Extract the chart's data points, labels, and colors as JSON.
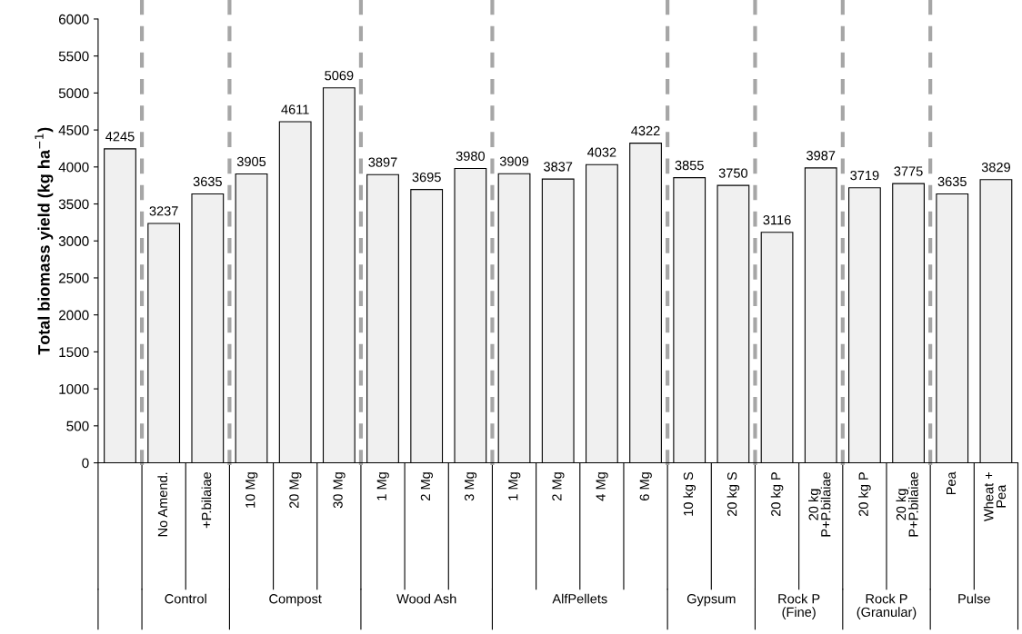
{
  "chart_data": {
    "type": "bar",
    "ylabel": "Total biomass yield (kg ha$^{−1}$)",
    "categories": [
      null,
      "No Amend.",
      "+P.bilaiae",
      "10 Mg",
      "20 Mg",
      "30 Mg",
      "1 Mg",
      "2 Mg",
      "3 Mg",
      "1 Mg",
      "2 Mg",
      "4 Mg",
      "6 Mg",
      "10 kg S",
      "20 kg S",
      "20 kg P",
      "20 kg\nP+P.bilaiae",
      "20 kg P",
      "20 kg\nP+P.bilaiae",
      "Pea",
      "Wheat +\nPea"
    ],
    "values": [
      4245,
      3237,
      3635,
      3905,
      4611,
      5069,
      3897,
      3695,
      3980,
      3909,
      3837,
      4032,
      4322,
      3855,
      3750,
      3116,
      3987,
      3719,
      3775,
      3635,
      3829
    ],
    "color": "#f0f0f0",
    "data_labels": true,
    "ylim": [
      0,
      6000
    ],
    "yticks": [
      0,
      500,
      1000,
      1500,
      2000,
      2500,
      3000,
      3500,
      4000,
      4500,
      5000,
      5500,
      6000
    ],
    "grid": false,
    "annotations": [
      "Control",
      "Compost",
      "Wood Ash",
      "AlfPellets",
      "Gypsum",
      "Rock P\n(Fine)",
      "Rock P\n(Granular)",
      "Pulse"
    ]
  }
}
